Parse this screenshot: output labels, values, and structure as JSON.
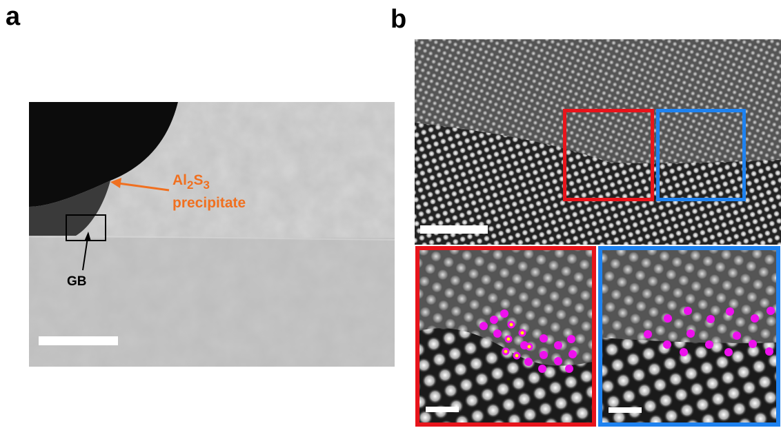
{
  "panels": [
    {
      "label": "a",
      "precipitate": {
        "parts": [
          "Al",
          "2",
          "S",
          "3"
        ],
        "line2": "precipitate"
      },
      "gb": "GB"
    },
    {
      "label": "b"
    }
  ]
}
